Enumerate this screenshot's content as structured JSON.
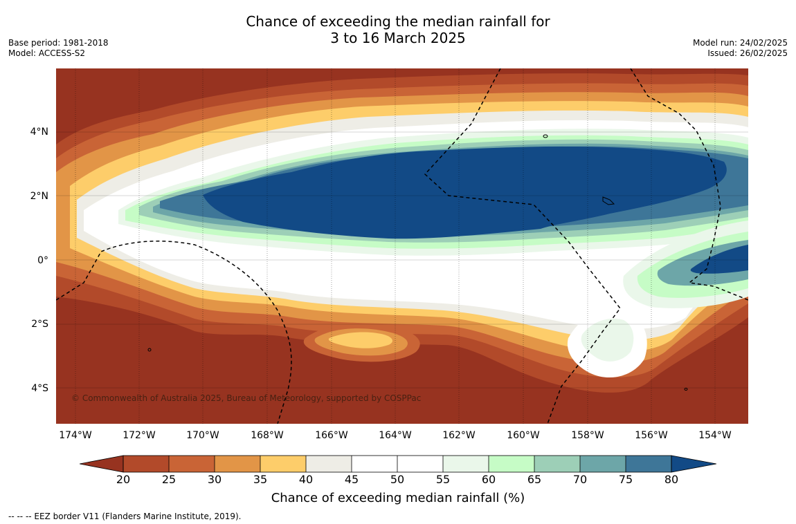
{
  "title_line1": "Chance of exceeding the median rainfall for",
  "title_line2": "3 to 16 March 2025",
  "meta_left": [
    "Base period: 1981-2018",
    "Model: ACCESS-S2"
  ],
  "meta_right": [
    "Model run: 24/02/2025",
    "Issued: 26/02/2025"
  ],
  "map": {
    "lat_labels": [
      "4°N",
      "2°N",
      "0°",
      "2°S",
      "4°S"
    ],
    "lon_labels": [
      "174°W",
      "172°W",
      "170°W",
      "168°W",
      "166°W",
      "164°W",
      "162°W",
      "160°W",
      "158°W",
      "156°W",
      "154°W"
    ],
    "copyright": "© Commonwealth of Australia 2025, Bureau of Meteorology, supported by COSPPac"
  },
  "colorbar": {
    "ticks": [
      "20",
      "25",
      "30",
      "35",
      "40",
      "45",
      "50",
      "55",
      "60",
      "65",
      "70",
      "75",
      "80"
    ],
    "colors": [
      "#973320",
      "#b24a2a",
      "#c96436",
      "#e29547",
      "#fdcd6a",
      "#eeede6",
      "#ffffff",
      "#ffffff",
      "#eaf7ea",
      "#c6fcc6",
      "#9dcfb7",
      "#6da6a8",
      "#3e7698",
      "#124a86"
    ],
    "title": "Chance of exceeding median rainfall (%)"
  },
  "footnote": "--  --  -- EEZ border V11 (Flanders Marine Institute, 2019).",
  "palette": {
    "c20": "#973320",
    "c25": "#b24a2a",
    "c30": "#c96436",
    "c35": "#e29547",
    "c40": "#fdcd6a",
    "c45": "#eeede6",
    "c50": "#ffffff",
    "c60": "#eaf7ea",
    "c65": "#c6fcc6",
    "c70": "#9dcfb7",
    "c75": "#6da6a8",
    "c80": "#3e7698",
    "c80plus": "#124a86"
  }
}
